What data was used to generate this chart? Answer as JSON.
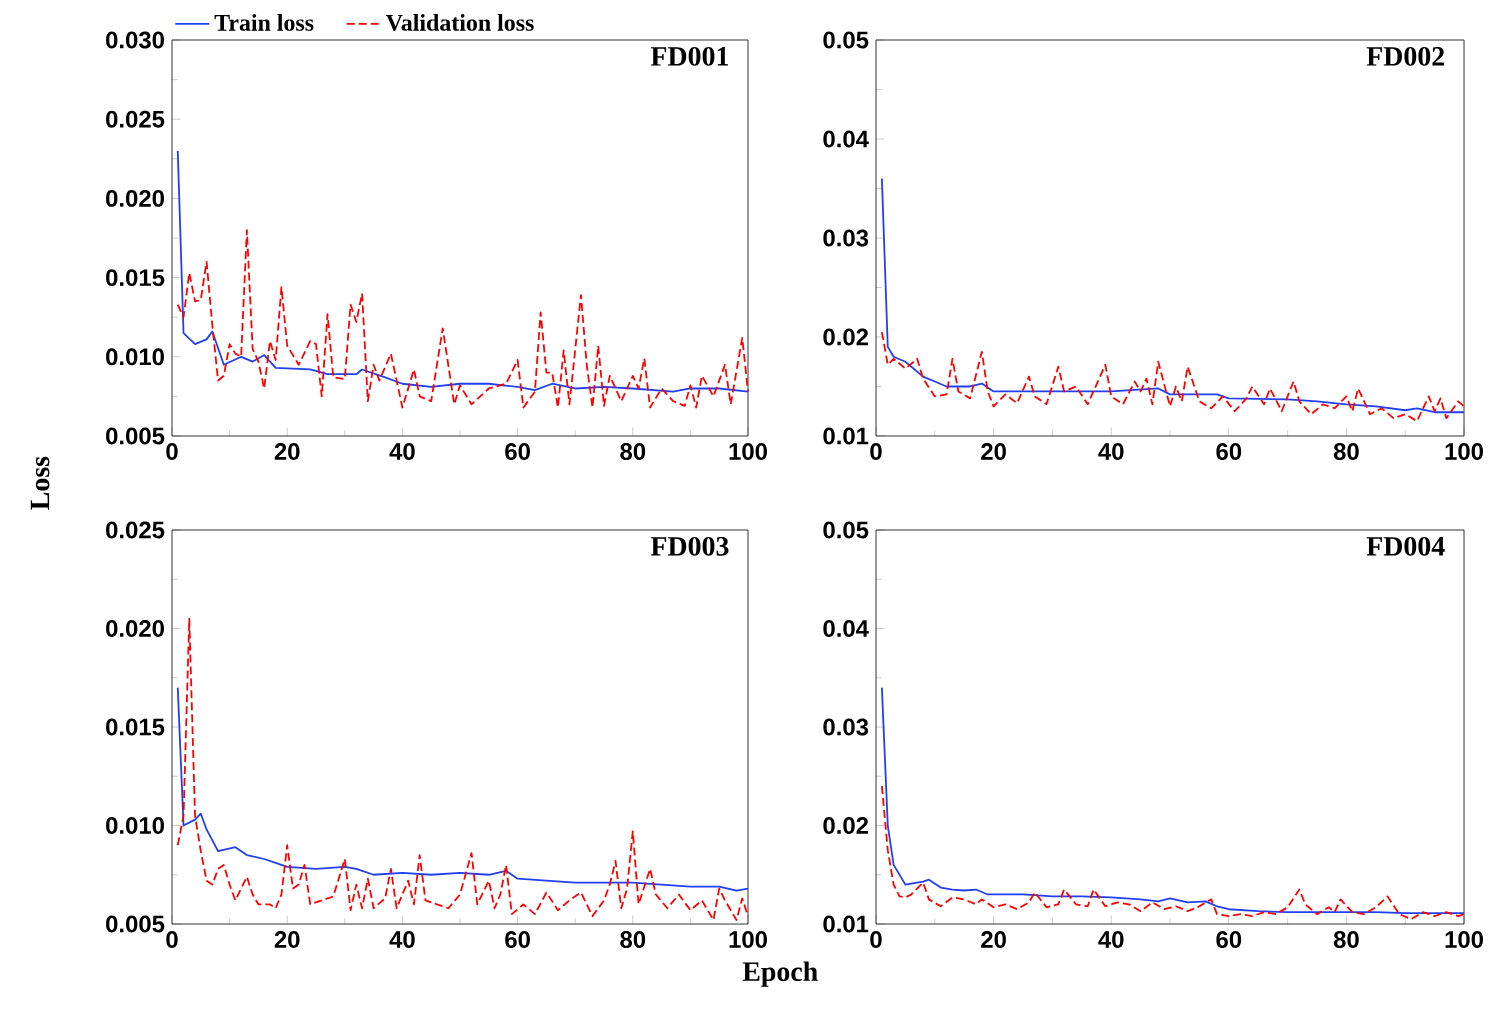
{
  "chart_data": [
    {
      "type": "line",
      "title": "FD001",
      "ylabel": "Loss",
      "legend": "top",
      "marker": "none",
      "xlim": [
        0,
        100
      ],
      "xticks": [
        0,
        20,
        40,
        60,
        80,
        100
      ],
      "ylim": [
        0.005,
        0.03
      ],
      "yticks": [
        0.005,
        {
          "value": 0.01,
          "label": "0.010"
        },
        0.015,
        {
          "value": 0.02,
          "label": "0.020"
        },
        0.025,
        {
          "value": 0.03,
          "label": "0.030"
        }
      ],
      "series": [
        {
          "name": "Train loss",
          "color": "#2040f0",
          "line_style": "solid",
          "x": [
            1,
            2,
            4,
            6,
            7,
            9,
            12,
            14,
            16,
            18,
            24,
            27,
            32,
            33,
            37,
            40,
            45,
            50,
            55,
            60,
            63,
            66,
            70,
            75,
            80,
            87,
            90,
            95,
            100
          ],
          "values": [
            0.023,
            0.0115,
            0.0108,
            0.0111,
            0.0116,
            0.0095,
            0.01,
            0.0097,
            0.0101,
            0.0093,
            0.0092,
            0.0089,
            0.0089,
            0.0092,
            0.0087,
            0.0083,
            0.0081,
            0.0083,
            0.0083,
            0.0081,
            0.0079,
            0.0083,
            0.008,
            0.0081,
            0.008,
            0.0078,
            0.008,
            0.008,
            0.0078
          ]
        },
        {
          "name": "Validation loss",
          "color": "#ff0000",
          "line_style": "dashed",
          "x": [
            1,
            2,
            3,
            4,
            5,
            6,
            7,
            8,
            9,
            10,
            11,
            12,
            13,
            14,
            15,
            16,
            17,
            18,
            19,
            20,
            22,
            24,
            25,
            26,
            27,
            28,
            30,
            31,
            32,
            33,
            34,
            35,
            36,
            38,
            39,
            40,
            42,
            43,
            45,
            47,
            49,
            50,
            52,
            55,
            58,
            60,
            61,
            63,
            64,
            65,
            66,
            67,
            68,
            69,
            71,
            72,
            73,
            74,
            75,
            76,
            78,
            80,
            81,
            82,
            83,
            85,
            87,
            89,
            90,
            91,
            92,
            94,
            96,
            97,
            99,
            100
          ],
          "values": [
            0.0133,
            0.0125,
            0.0153,
            0.0135,
            0.0136,
            0.016,
            0.012,
            0.0085,
            0.0088,
            0.0108,
            0.0102,
            0.01,
            0.018,
            0.0105,
            0.0097,
            0.008,
            0.011,
            0.0098,
            0.0144,
            0.0107,
            0.0095,
            0.011,
            0.0108,
            0.0075,
            0.0127,
            0.0087,
            0.0086,
            0.0133,
            0.0122,
            0.014,
            0.0072,
            0.0095,
            0.0085,
            0.0102,
            0.0085,
            0.0068,
            0.0092,
            0.0075,
            0.0072,
            0.0118,
            0.007,
            0.0082,
            0.007,
            0.008,
            0.0083,
            0.0098,
            0.0068,
            0.0078,
            0.0128,
            0.009,
            0.009,
            0.0068,
            0.0104,
            0.007,
            0.0139,
            0.0095,
            0.0068,
            0.0107,
            0.0069,
            0.0088,
            0.0072,
            0.0088,
            0.008,
            0.0099,
            0.0068,
            0.008,
            0.0072,
            0.0069,
            0.0082,
            0.0068,
            0.0088,
            0.0075,
            0.0095,
            0.007,
            0.0112,
            0.0078
          ]
        }
      ]
    },
    {
      "type": "line",
      "title": "FD002",
      "marker": "none",
      "xlim": [
        0,
        100
      ],
      "xticks": [
        0,
        20,
        40,
        60,
        80,
        100
      ],
      "ylim": [
        0.01,
        0.05
      ],
      "yticks": [
        0.01,
        0.02,
        0.03,
        0.04,
        0.05
      ],
      "series": [
        {
          "color": "#2040f0",
          "line_style": "solid",
          "x": [
            1,
            2,
            3,
            5,
            8,
            10,
            12,
            16,
            18,
            20,
            30,
            40,
            48,
            50,
            58,
            60,
            70,
            75,
            80,
            85,
            90,
            92,
            95,
            100
          ],
          "values": [
            0.036,
            0.019,
            0.018,
            0.0175,
            0.016,
            0.0155,
            0.015,
            0.015,
            0.0153,
            0.0145,
            0.0145,
            0.0145,
            0.0148,
            0.0142,
            0.0142,
            0.0138,
            0.0137,
            0.0135,
            0.0132,
            0.013,
            0.0126,
            0.0128,
            0.0124,
            0.0124
          ]
        },
        {
          "color": "#ff0000",
          "line_style": "dashed",
          "x": [
            1,
            2,
            3,
            5,
            7,
            8,
            10,
            12,
            13,
            14,
            16,
            18,
            19,
            20,
            22,
            24,
            26,
            27,
            29,
            31,
            32,
            34,
            36,
            39,
            40,
            42,
            44,
            45,
            46,
            47,
            48,
            50,
            51,
            52,
            53,
            55,
            57,
            59,
            61,
            63,
            64,
            66,
            67,
            69,
            71,
            72,
            74,
            76,
            78,
            80,
            81,
            82,
            84,
            86,
            88,
            90,
            92,
            94,
            95,
            96,
            97,
            99,
            100
          ],
          "values": [
            0.0205,
            0.0172,
            0.0178,
            0.0168,
            0.0178,
            0.0158,
            0.014,
            0.0142,
            0.0178,
            0.0145,
            0.0138,
            0.0185,
            0.0145,
            0.013,
            0.0142,
            0.0133,
            0.016,
            0.014,
            0.0132,
            0.017,
            0.0145,
            0.015,
            0.0132,
            0.0172,
            0.014,
            0.0132,
            0.0155,
            0.0145,
            0.0158,
            0.0132,
            0.0175,
            0.013,
            0.015,
            0.0135,
            0.017,
            0.0135,
            0.0128,
            0.014,
            0.0125,
            0.0138,
            0.015,
            0.0132,
            0.0148,
            0.0125,
            0.0155,
            0.0135,
            0.0122,
            0.0132,
            0.0128,
            0.014,
            0.0125,
            0.0148,
            0.0122,
            0.0128,
            0.0118,
            0.0122,
            0.0115,
            0.014,
            0.0125,
            0.0138,
            0.0118,
            0.0135,
            0.013
          ]
        }
      ]
    },
    {
      "type": "line",
      "title": "FD003",
      "xlabel": "Epoch",
      "marker": "none",
      "xlim": [
        0,
        100
      ],
      "xticks": [
        0,
        20,
        40,
        60,
        80,
        100
      ],
      "ylim": [
        0.005,
        0.025
      ],
      "yticks": [
        0.005,
        {
          "value": 0.01,
          "label": "0.010"
        },
        0.015,
        {
          "value": 0.02,
          "label": "0.020"
        },
        0.025
      ],
      "series": [
        {
          "color": "#2040f0",
          "line_style": "solid",
          "x": [
            1,
            2,
            4,
            5,
            6,
            8,
            11,
            13,
            16,
            18,
            20,
            25,
            30,
            32,
            35,
            40,
            45,
            50,
            55,
            58,
            60,
            65,
            70,
            75,
            80,
            85,
            90,
            95,
            98,
            100
          ],
          "values": [
            0.017,
            0.01,
            0.0103,
            0.0106,
            0.0098,
            0.0087,
            0.0089,
            0.0085,
            0.0083,
            0.0081,
            0.0079,
            0.0078,
            0.0079,
            0.0078,
            0.0075,
            0.0076,
            0.0075,
            0.0076,
            0.0075,
            0.0077,
            0.0073,
            0.0072,
            0.0071,
            0.0071,
            0.0071,
            0.007,
            0.0069,
            0.0069,
            0.0067,
            0.0068
          ]
        },
        {
          "color": "#ff0000",
          "line_style": "dashed",
          "x": [
            1,
            2,
            3,
            4,
            5,
            6,
            7,
            8,
            9,
            10,
            11,
            12,
            13,
            14,
            15,
            17,
            18,
            19,
            20,
            21,
            22,
            23,
            24,
            26,
            28,
            30,
            31,
            32,
            33,
            34,
            35,
            37,
            38,
            39,
            41,
            42,
            43,
            44,
            46,
            48,
            50,
            52,
            53,
            55,
            56,
            57,
            58,
            59,
            61,
            63,
            65,
            67,
            69,
            71,
            73,
            75,
            76,
            77,
            78,
            79,
            80,
            81,
            83,
            84,
            86,
            88,
            90,
            92,
            94,
            95,
            96,
            98,
            99,
            100
          ],
          "values": [
            0.009,
            0.0105,
            0.0205,
            0.0105,
            0.0087,
            0.0072,
            0.007,
            0.0078,
            0.008,
            0.007,
            0.0062,
            0.0068,
            0.0074,
            0.0065,
            0.006,
            0.006,
            0.0058,
            0.0065,
            0.009,
            0.0068,
            0.007,
            0.008,
            0.006,
            0.0062,
            0.0064,
            0.0083,
            0.0057,
            0.007,
            0.0058,
            0.0073,
            0.0058,
            0.0063,
            0.0078,
            0.0058,
            0.0072,
            0.006,
            0.0085,
            0.0062,
            0.006,
            0.0058,
            0.0065,
            0.0086,
            0.006,
            0.0072,
            0.0058,
            0.0065,
            0.008,
            0.0055,
            0.006,
            0.0055,
            0.0066,
            0.0057,
            0.0062,
            0.0066,
            0.0054,
            0.0062,
            0.007,
            0.0082,
            0.0058,
            0.0068,
            0.0097,
            0.006,
            0.0078,
            0.0065,
            0.0058,
            0.0065,
            0.0057,
            0.0062,
            0.0052,
            0.0068,
            0.0062,
            0.0052,
            0.0063,
            0.0054
          ]
        }
      ]
    },
    {
      "type": "line",
      "title": "FD004",
      "marker": "none",
      "xlim": [
        0,
        100
      ],
      "xticks": [
        0,
        20,
        40,
        60,
        80,
        100
      ],
      "ylim": [
        0.01,
        0.05
      ],
      "yticks": [
        0.01,
        0.02,
        0.03,
        0.04,
        0.05
      ],
      "series": [
        {
          "color": "#2040f0",
          "line_style": "solid",
          "x": [
            1,
            2,
            3,
            5,
            8,
            9,
            11,
            13,
            15,
            17,
            19,
            25,
            30,
            35,
            40,
            45,
            48,
            50,
            53,
            56,
            58,
            60,
            65,
            70,
            75,
            80,
            85,
            90,
            95,
            100
          ],
          "values": [
            0.034,
            0.02,
            0.016,
            0.014,
            0.0143,
            0.0145,
            0.0137,
            0.0135,
            0.0134,
            0.0135,
            0.013,
            0.013,
            0.0128,
            0.0128,
            0.0127,
            0.0125,
            0.0123,
            0.0126,
            0.0122,
            0.0123,
            0.0118,
            0.0115,
            0.0113,
            0.0112,
            0.0112,
            0.0112,
            0.0112,
            0.0111,
            0.0111,
            0.0111
          ]
        },
        {
          "color": "#ff0000",
          "line_style": "dashed",
          "x": [
            1,
            2,
            3,
            4,
            5,
            6,
            8,
            9,
            11,
            13,
            15,
            17,
            18,
            20,
            22,
            24,
            26,
            27,
            29,
            31,
            32,
            34,
            36,
            37,
            39,
            41,
            43,
            45,
            47,
            49,
            51,
            53,
            55,
            57,
            58,
            60,
            62,
            64,
            66,
            68,
            70,
            72,
            73,
            75,
            77,
            78,
            79,
            81,
            83,
            85,
            87,
            89,
            91,
            93,
            95,
            97,
            99,
            100
          ],
          "values": [
            0.024,
            0.0175,
            0.014,
            0.0128,
            0.0127,
            0.013,
            0.0142,
            0.0125,
            0.0118,
            0.0127,
            0.0125,
            0.012,
            0.0125,
            0.0117,
            0.012,
            0.0115,
            0.0122,
            0.0132,
            0.0117,
            0.012,
            0.0135,
            0.012,
            0.0118,
            0.0135,
            0.0118,
            0.0122,
            0.012,
            0.0113,
            0.0122,
            0.0115,
            0.0118,
            0.0113,
            0.0118,
            0.0125,
            0.011,
            0.0108,
            0.011,
            0.0108,
            0.0112,
            0.011,
            0.0117,
            0.0135,
            0.012,
            0.011,
            0.0117,
            0.0112,
            0.0125,
            0.0112,
            0.011,
            0.0117,
            0.0128,
            0.011,
            0.0105,
            0.0112,
            0.0108,
            0.0112,
            0.0108,
            0.011
          ]
        }
      ]
    }
  ]
}
